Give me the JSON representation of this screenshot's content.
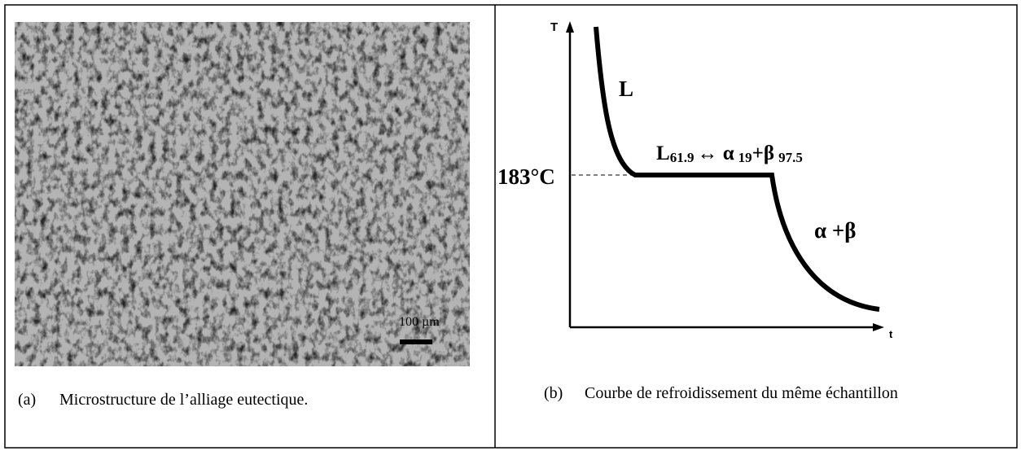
{
  "panel_a": {
    "scale_label": "100 µm",
    "caption_tag": "(a)",
    "caption": "Microstructure de l’alliage eutectique."
  },
  "panel_b": {
    "axis_y": "T",
    "axis_x": "t",
    "temperature": "183°C",
    "liquid_label": "L",
    "reaction": {
      "liquid": "L",
      "liquid_sub": "61.9",
      "arrow_alpha": "↔ α",
      "alpha_sub": "19",
      "plus_beta": "+β",
      "beta_sub": "97.5"
    },
    "solid_label": "α +β",
    "caption_tag": "(b)",
    "caption": "Courbe de refroidissement du même échantillon"
  }
}
